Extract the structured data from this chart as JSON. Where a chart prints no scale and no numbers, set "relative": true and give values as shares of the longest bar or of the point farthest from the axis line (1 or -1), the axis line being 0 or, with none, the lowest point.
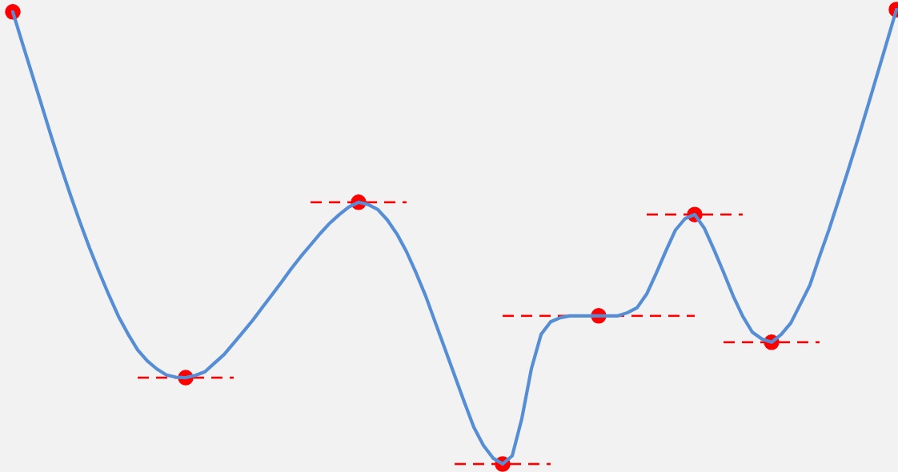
{
  "chart_data": {
    "type": "line",
    "relative": true,
    "categories": [
      null,
      null,
      null,
      null,
      null,
      null,
      null,
      null,
      null,
      null,
      null,
      null,
      null,
      null,
      null,
      null,
      null,
      null,
      null,
      null,
      null,
      null,
      null,
      null,
      null,
      null,
      null,
      null,
      null,
      null,
      null,
      null,
      null,
      null,
      null,
      null,
      null,
      null,
      null,
      null,
      null,
      null,
      null,
      null,
      null,
      null,
      null,
      null,
      null,
      null,
      null,
      null,
      null,
      null,
      null,
      null,
      null,
      null,
      null,
      null,
      null,
      null,
      null,
      null,
      null,
      null,
      null,
      null,
      null,
      null,
      null,
      null,
      null,
      null,
      null,
      null,
      null,
      null,
      null,
      null,
      null,
      null,
      null,
      null,
      null,
      null,
      null,
      null,
      null,
      null,
      null,
      null,
      null
    ],
    "series": [
      {
        "color": "#558ed5",
        "line_style": "solid",
        "values": [
          0.995,
          0.926,
          0.858,
          0.79,
          0.721,
          0.655,
          0.592,
          0.532,
          0.475,
          0.422,
          0.372,
          0.325,
          0.286,
          0.251,
          0.227,
          0.209,
          0.196,
          0.191,
          0.19,
          0.195,
          0.203,
          0.222,
          0.241,
          0.266,
          0.291,
          0.317,
          0.345,
          0.373,
          0.401,
          0.43,
          0.457,
          0.482,
          0.507,
          0.53,
          0.549,
          0.566,
          0.576,
          0.571,
          0.56,
          0.537,
          0.506,
          0.467,
          0.42,
          0.369,
          0.311,
          0.253,
          0.195,
          0.137,
          0.081,
          0.041,
          0.013,
          0,
          0.018,
          0.1,
          0.21,
          0.285,
          0.313,
          0.322,
          0.326,
          0.326,
          0.326,
          0.326,
          0.326,
          0.326,
          0.333,
          0.344,
          0.374,
          0.42,
          0.469,
          0.515,
          0.54,
          0.549,
          0.519,
          0.472,
          0.422,
          0.37,
          0.325,
          0.29,
          0.275,
          0.268,
          0.285,
          0.31,
          0.352,
          0.394,
          0.457,
          0.517,
          0.582,
          0.648,
          0.716,
          0.786,
          0.857,
          0.928,
          1.0
        ]
      }
    ]
  }
}
